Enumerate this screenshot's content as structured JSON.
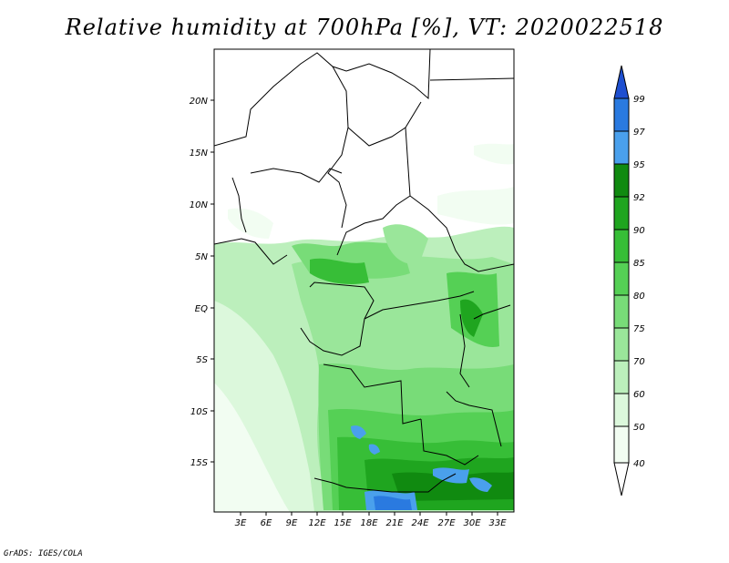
{
  "title": "Relative humidity at 700hPa [%], VT: 2020022518",
  "footer": "GrADS: IGES/COLA",
  "map": {
    "lat_labels": [
      "20N",
      "15N",
      "10N",
      "5N",
      "EQ",
      "5S",
      "10S",
      "15S"
    ],
    "lon_labels": [
      "3E",
      "6E",
      "9E",
      "12E",
      "15E",
      "18E",
      "21E",
      "24E",
      "27E",
      "30E",
      "33E"
    ]
  },
  "colorbar": {
    "levels": [
      "99",
      "97",
      "95",
      "92",
      "90",
      "85",
      "80",
      "75",
      "70",
      "60",
      "50",
      "40"
    ],
    "colors": [
      "#1e4fd0",
      "#2a7ae0",
      "#4aa0ec",
      "#108a10",
      "#1fa51f",
      "#37be37",
      "#55d055",
      "#78dc78",
      "#9ae69a",
      "#bcefbc",
      "#dcf8dc",
      "#f2fdf2",
      "#ffffff"
    ]
  }
}
